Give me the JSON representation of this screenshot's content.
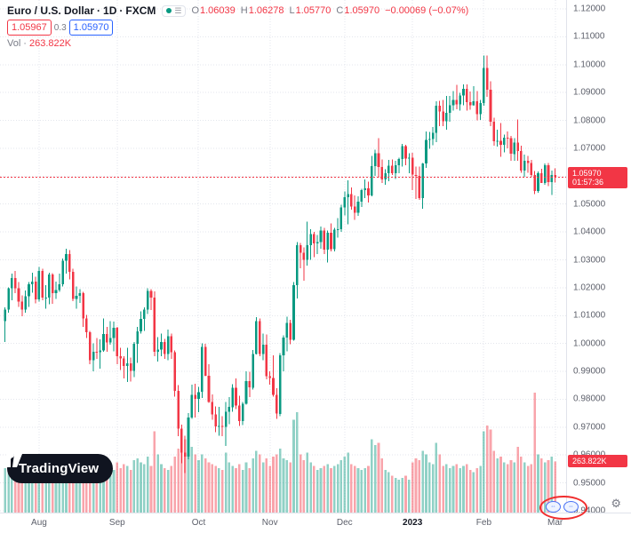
{
  "legend": {
    "symbol_title": "Euro / U.S. Dollar",
    "sep": "·",
    "interval": "1D",
    "exchange": "FXCM",
    "ohlc": {
      "o_label": "O",
      "o": "1.06039",
      "h_label": "H",
      "h": "1.06278",
      "l_label": "L",
      "l": "1.05770",
      "c_label": "C",
      "c": "1.05970",
      "change": "−0.00069 (−0.07%)"
    },
    "bid": "1.05967",
    "spread": "0.3",
    "ask": "1.05970",
    "vol_label": "Vol",
    "vol_sep": "·",
    "vol_value": "263.822K"
  },
  "badges": {
    "price": "1.05970",
    "countdown": "01:57:36",
    "volume": "263.822K"
  },
  "logo": {
    "text": "TradingView"
  },
  "icons": {
    "market_status": "market-open-dot",
    "quick_menu": "☰",
    "gear": "⚙"
  },
  "colors": {
    "up": "#089981",
    "down": "#f23645",
    "accent_blue": "#2962ff",
    "price_line": "#f23645"
  },
  "chart_data": {
    "type": "candlestick",
    "title": "Euro / U.S. Dollar · 1D · FXCM",
    "y_range": [
      0.94,
      1.12
    ],
    "y_tick_step": 0.01,
    "current_price": 1.0597,
    "volume_unit": "K",
    "legend_position": "top-left",
    "grid": true,
    "price_ticks": [
      {
        "v": 1.12,
        "label": "1.12000"
      },
      {
        "v": 1.11,
        "label": "1.11000"
      },
      {
        "v": 1.1,
        "label": "1.10000"
      },
      {
        "v": 1.09,
        "label": "1.09000"
      },
      {
        "v": 1.08,
        "label": "1.08000"
      },
      {
        "v": 1.07,
        "label": "1.07000"
      },
      {
        "v": 1.06,
        "label": "1.06000"
      },
      {
        "v": 1.05,
        "label": "1.05000"
      },
      {
        "v": 1.04,
        "label": "1.04000"
      },
      {
        "v": 1.03,
        "label": "1.03000"
      },
      {
        "v": 1.02,
        "label": "1.02000"
      },
      {
        "v": 1.01,
        "label": "1.01000"
      },
      {
        "v": 1.0,
        "label": "1.00000"
      },
      {
        "v": 0.99,
        "label": "0.99000"
      },
      {
        "v": 0.98,
        "label": "0.98000"
      },
      {
        "v": 0.97,
        "label": "0.97000"
      },
      {
        "v": 0.96,
        "label": "0.96000"
      },
      {
        "v": 0.95,
        "label": "0.95000"
      },
      {
        "v": 0.94,
        "label": "0.94000"
      }
    ],
    "time_ticks": [
      {
        "label": "Aug",
        "i": 10
      },
      {
        "label": "Sep",
        "i": 33
      },
      {
        "label": "Oct",
        "i": 57
      },
      {
        "label": "Nov",
        "i": 78
      },
      {
        "label": "Dec",
        "i": 100
      },
      {
        "label": "2023",
        "i": 120,
        "bold": true
      },
      {
        "label": "Feb",
        "i": 141
      },
      {
        "label": "Mar",
        "i": 162
      }
    ],
    "candles_format": [
      "open",
      "high",
      "low",
      "close",
      "volume_K"
    ],
    "candles": [
      [
        1.008,
        1.013,
        1.0005,
        1.0122,
        230
      ],
      [
        1.0122,
        1.0201,
        1.011,
        1.0198,
        220
      ],
      [
        1.0198,
        1.025,
        1.0155,
        1.0235,
        210
      ],
      [
        1.0235,
        1.026,
        1.018,
        1.0198,
        200
      ],
      [
        1.0198,
        1.022,
        1.0131,
        1.015,
        220
      ],
      [
        1.015,
        1.0172,
        1.0097,
        1.0122,
        230
      ],
      [
        1.0122,
        1.019,
        1.011,
        1.0169,
        210
      ],
      [
        1.0169,
        1.022,
        1.0131,
        1.0212,
        220
      ],
      [
        1.0212,
        1.0254,
        1.0182,
        1.0222,
        200
      ],
      [
        1.0222,
        1.024,
        1.0144,
        1.0158,
        210
      ],
      [
        1.0158,
        1.0275,
        1.015,
        1.026,
        210
      ],
      [
        1.026,
        1.0268,
        1.0155,
        1.0165,
        230
      ],
      [
        1.0165,
        1.021,
        1.0125,
        1.0165,
        190
      ],
      [
        1.0165,
        1.0254,
        1.014,
        1.0247,
        220
      ],
      [
        1.0247,
        1.0252,
        1.0142,
        1.018,
        260
      ],
      [
        1.018,
        1.0222,
        1.016,
        1.0192,
        180
      ],
      [
        1.0192,
        1.025,
        1.0185,
        1.0213,
        170
      ],
      [
        1.0213,
        1.0305,
        1.0205,
        1.0297,
        200
      ],
      [
        1.0297,
        1.034,
        1.025,
        1.032,
        240
      ],
      [
        1.032,
        1.0335,
        1.023,
        1.0257,
        210
      ],
      [
        1.0257,
        1.0268,
        1.0152,
        1.016,
        230
      ],
      [
        1.016,
        1.0205,
        1.0125,
        1.0171,
        180
      ],
      [
        1.0171,
        1.0195,
        1.0145,
        1.018,
        160
      ],
      [
        1.018,
        1.0185,
        1.006,
        1.009,
        250
      ],
      [
        1.009,
        1.0102,
        1.002,
        1.004,
        230
      ],
      [
        1.004,
        1.0045,
        0.9925,
        0.994,
        280
      ],
      [
        0.994,
        1.0,
        0.99,
        0.997,
        260
      ],
      [
        0.997,
        1.002,
        0.9945,
        0.9968,
        210
      ],
      [
        0.9968,
        1.0015,
        0.991,
        0.9975,
        200
      ],
      [
        0.9975,
        1.009,
        0.997,
        1.0034,
        240
      ],
      [
        1.0034,
        1.006,
        0.997,
        1.0003,
        200
      ],
      [
        1.0003,
        1.008,
        0.9995,
        1.0019,
        190
      ],
      [
        1.0019,
        1.0078,
        0.9972,
        1.0056,
        220
      ],
      [
        1.0056,
        1.006,
        0.9925,
        0.9955,
        260
      ],
      [
        0.9955,
        0.9985,
        0.9905,
        0.9947,
        230
      ],
      [
        0.9947,
        0.9955,
        0.9875,
        0.992,
        250
      ],
      [
        0.992,
        0.9985,
        0.9862,
        0.9929,
        240
      ],
      [
        0.9929,
        0.995,
        0.9864,
        0.9902,
        220
      ],
      [
        0.9902,
        1.0005,
        0.988,
        0.9999,
        270
      ],
      [
        0.9999,
        1.006,
        0.993,
        1.0043,
        280
      ],
      [
        1.0043,
        1.0115,
        1.0035,
        1.0088,
        260
      ],
      [
        1.0088,
        1.013,
        1.0045,
        1.0121,
        250
      ],
      [
        1.0121,
        1.0198,
        1.0105,
        1.0189,
        290
      ],
      [
        1.0189,
        1.0195,
        1.012,
        1.0165,
        240
      ],
      [
        1.0165,
        1.0187,
        0.9955,
        0.997,
        420
      ],
      [
        0.997,
        1.0023,
        0.9935,
        0.9978,
        300
      ],
      [
        0.9978,
        1.0035,
        0.9955,
        1.0006,
        250
      ],
      [
        1.0006,
        1.0017,
        0.9945,
        0.9963,
        230
      ],
      [
        0.9963,
        1.005,
        0.994,
        1.0026,
        220
      ],
      [
        1.0026,
        1.0035,
        0.9945,
        0.9968,
        240
      ],
      [
        0.9968,
        0.9975,
        0.981,
        0.983,
        290
      ],
      [
        0.983,
        0.985,
        0.9667,
        0.9694,
        330
      ],
      [
        0.9694,
        0.9709,
        0.957,
        0.9608,
        350
      ],
      [
        0.9608,
        0.967,
        0.9535,
        0.9594,
        380
      ],
      [
        0.9594,
        0.975,
        0.9585,
        0.9735,
        360
      ],
      [
        0.9735,
        0.9853,
        0.973,
        0.9815,
        340
      ],
      [
        0.9815,
        0.9855,
        0.9735,
        0.9802,
        300
      ],
      [
        0.9802,
        0.9844,
        0.9753,
        0.9826,
        270
      ],
      [
        0.9826,
        1.0,
        0.9805,
        0.9987,
        300
      ],
      [
        0.9987,
        0.9999,
        0.9883,
        0.9884,
        280
      ],
      [
        0.9884,
        0.9926,
        0.9787,
        0.979,
        260
      ],
      [
        0.979,
        0.9817,
        0.9726,
        0.9745,
        250
      ],
      [
        0.9745,
        0.9775,
        0.9682,
        0.9703,
        240
      ],
      [
        0.9703,
        0.9773,
        0.967,
        0.9705,
        230
      ],
      [
        0.9705,
        0.974,
        0.9668,
        0.9701,
        220
      ],
      [
        0.9701,
        0.979,
        0.9632,
        0.9755,
        310
      ],
      [
        0.9755,
        0.9807,
        0.9711,
        0.9772,
        260
      ],
      [
        0.9772,
        0.9854,
        0.9756,
        0.9842,
        240
      ],
      [
        0.9842,
        0.9875,
        0.9764,
        0.9777,
        230
      ],
      [
        0.9777,
        0.9812,
        0.9704,
        0.9722,
        250
      ],
      [
        0.9722,
        0.979,
        0.9708,
        0.9784,
        220
      ],
      [
        0.9784,
        0.99,
        0.978,
        0.9865,
        260
      ],
      [
        0.9865,
        0.9899,
        0.9808,
        0.9842,
        230
      ],
      [
        0.9842,
        0.9976,
        0.9835,
        0.9963,
        280
      ],
      [
        0.9963,
        1.0094,
        0.996,
        1.008,
        320
      ],
      [
        1.008,
        1.009,
        0.9955,
        0.9963,
        300
      ],
      [
        0.9963,
        1.0035,
        0.994,
        0.9996,
        260
      ],
      [
        0.9996,
        1.0032,
        0.9872,
        0.9882,
        280
      ],
      [
        0.9882,
        0.99,
        0.9853,
        0.9877,
        240
      ],
      [
        0.9877,
        0.9957,
        0.981,
        0.9816,
        290
      ],
      [
        0.9816,
        0.984,
        0.973,
        0.9748,
        300
      ],
      [
        0.9748,
        0.9965,
        0.974,
        0.9957,
        330
      ],
      [
        0.9957,
        1.003,
        0.99,
        1.0021,
        280
      ],
      [
        1.0021,
        1.0096,
        0.9972,
        1.0074,
        270
      ],
      [
        1.0074,
        1.0085,
        0.9998,
        1.0013,
        260
      ],
      [
        1.0013,
        1.0221,
        1.001,
        1.0209,
        480
      ],
      [
        1.0209,
        1.0364,
        1.0162,
        1.0353,
        520
      ],
      [
        1.0353,
        1.036,
        1.027,
        1.0325,
        300
      ],
      [
        1.0325,
        1.0345,
        1.0225,
        1.03,
        270
      ],
      [
        1.03,
        1.0437,
        1.028,
        1.0352,
        310
      ],
      [
        1.0352,
        1.041,
        1.03,
        1.0393,
        260
      ],
      [
        1.0393,
        1.04,
        1.031,
        1.0359,
        240
      ],
      [
        1.0359,
        1.039,
        1.032,
        1.0364,
        220
      ],
      [
        1.0364,
        1.042,
        1.034,
        1.0405,
        230
      ],
      [
        1.0405,
        1.0415,
        1.032,
        1.0336,
        240
      ],
      [
        1.0336,
        1.0405,
        1.029,
        1.0397,
        250
      ],
      [
        1.0397,
        1.043,
        1.033,
        1.0339,
        230
      ],
      [
        1.0339,
        1.0415,
        1.033,
        1.0408,
        240
      ],
      [
        1.0408,
        1.045,
        1.038,
        1.041,
        250
      ],
      [
        1.041,
        1.0497,
        1.04,
        1.0488,
        270
      ],
      [
        1.0488,
        1.0545,
        1.046,
        1.0525,
        290
      ],
      [
        1.0525,
        1.0585,
        1.0427,
        1.0536,
        310
      ],
      [
        1.0536,
        1.056,
        1.048,
        1.0491,
        250
      ],
      [
        1.0491,
        1.0531,
        1.0443,
        1.0469,
        240
      ],
      [
        1.0469,
        1.0527,
        1.0458,
        1.0508,
        230
      ],
      [
        1.0508,
        1.0555,
        1.049,
        1.055,
        220
      ],
      [
        1.055,
        1.0589,
        1.0522,
        1.0557,
        230
      ],
      [
        1.0557,
        1.058,
        1.0505,
        1.0531,
        240
      ],
      [
        1.0531,
        1.0673,
        1.0528,
        1.0636,
        380
      ],
      [
        1.0636,
        1.0695,
        1.0601,
        1.0682,
        350
      ],
      [
        1.0682,
        1.0737,
        1.0594,
        1.0633,
        360
      ],
      [
        1.0633,
        1.066,
        1.0575,
        1.0588,
        280
      ],
      [
        1.0588,
        1.0625,
        1.057,
        1.061,
        220
      ],
      [
        1.061,
        1.0658,
        1.0582,
        1.0637,
        210
      ],
      [
        1.0637,
        1.066,
        1.0605,
        1.0611,
        190
      ],
      [
        1.0611,
        1.0655,
        1.059,
        1.064,
        180
      ],
      [
        1.064,
        1.0666,
        1.061,
        1.0661,
        170
      ],
      [
        1.0661,
        1.0715,
        1.0635,
        1.0707,
        180
      ],
      [
        1.0707,
        1.0713,
        1.064,
        1.0663,
        190
      ],
      [
        1.0663,
        1.0683,
        1.0611,
        1.0666,
        170
      ],
      [
        1.0666,
        1.0684,
        1.055,
        1.0605,
        260
      ],
      [
        1.0605,
        1.0635,
        1.0519,
        1.0601,
        280
      ],
      [
        1.0601,
        1.0635,
        1.0515,
        1.0522,
        270
      ],
      [
        1.0522,
        1.0648,
        1.0483,
        1.0645,
        320
      ],
      [
        1.0645,
        1.076,
        1.063,
        1.073,
        300
      ],
      [
        1.073,
        1.0758,
        1.0698,
        1.0734,
        260
      ],
      [
        1.0734,
        1.0776,
        1.0711,
        1.0756,
        250
      ],
      [
        1.0756,
        1.0868,
        1.0722,
        1.0853,
        360
      ],
      [
        1.0853,
        1.087,
        1.078,
        1.0832,
        300
      ],
      [
        1.0832,
        1.0874,
        1.078,
        1.0797,
        240
      ],
      [
        1.0797,
        1.0887,
        1.0766,
        1.0827,
        250
      ],
      [
        1.0827,
        1.0888,
        1.0795,
        1.0855,
        230
      ],
      [
        1.0855,
        1.0905,
        1.0835,
        1.0873,
        240
      ],
      [
        1.0873,
        1.0927,
        1.084,
        1.0858,
        250
      ],
      [
        1.0858,
        1.0899,
        1.0835,
        1.089,
        230
      ],
      [
        1.089,
        1.093,
        1.0855,
        1.0913,
        240
      ],
      [
        1.0913,
        1.0929,
        1.0835,
        1.0866,
        250
      ],
      [
        1.0866,
        1.0903,
        1.0838,
        1.0855,
        220
      ],
      [
        1.0855,
        1.0923,
        1.0853,
        1.0869,
        210
      ],
      [
        1.0869,
        1.0905,
        1.08,
        1.0823,
        230
      ],
      [
        1.0823,
        1.0874,
        1.0802,
        1.0862,
        240
      ],
      [
        1.0862,
        1.1033,
        1.0852,
        1.0988,
        420
      ],
      [
        1.0988,
        1.1032,
        1.0885,
        1.091,
        450
      ],
      [
        1.091,
        1.094,
        1.078,
        1.0795,
        430
      ],
      [
        1.0795,
        1.081,
        1.0709,
        1.0725,
        320
      ],
      [
        1.0725,
        1.0767,
        1.0706,
        1.0727,
        280
      ],
      [
        1.0727,
        1.0791,
        1.067,
        1.0712,
        290
      ],
      [
        1.0712,
        1.075,
        1.0685,
        1.0738,
        260
      ],
      [
        1.0738,
        1.0761,
        1.07,
        1.0737,
        250
      ],
      [
        1.0737,
        1.0745,
        1.0656,
        1.068,
        270
      ],
      [
        1.068,
        1.0736,
        1.0655,
        1.0721,
        260
      ],
      [
        1.0721,
        1.0804,
        1.0655,
        1.069,
        340
      ],
      [
        1.069,
        1.071,
        1.0612,
        1.062,
        290
      ],
      [
        1.062,
        1.0677,
        1.0598,
        1.0655,
        260
      ],
      [
        1.0655,
        1.0672,
        1.0613,
        1.0647,
        240
      ],
      [
        1.0647,
        1.0658,
        1.0598,
        1.0605,
        250
      ],
      [
        1.0605,
        1.0618,
        1.0536,
        1.0547,
        620
      ],
      [
        1.0547,
        1.0617,
        1.054,
        1.0611,
        300
      ],
      [
        1.0611,
        1.0626,
        1.0577,
        1.0576,
        280
      ],
      [
        1.0576,
        1.0645,
        1.057,
        1.0639,
        260
      ],
      [
        1.0639,
        1.0647,
        1.0565,
        1.0579,
        270
      ],
      [
        1.0579,
        1.062,
        1.0533,
        1.0604,
        290
      ],
      [
        1.06039,
        1.06278,
        1.0577,
        1.0597,
        263.822
      ]
    ]
  }
}
